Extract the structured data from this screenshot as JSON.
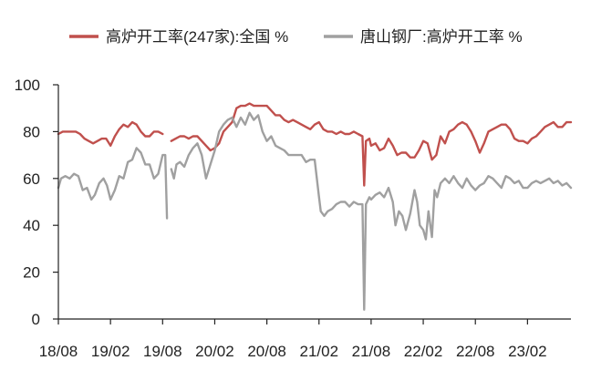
{
  "chart_data": {
    "type": "line",
    "title": "",
    "xlabel": "",
    "ylabel": "",
    "ylim": [
      0,
      100
    ],
    "yticks": [
      0,
      20,
      40,
      60,
      80,
      100
    ],
    "xlim": [
      0,
      59
    ],
    "x_tick_positions": [
      0,
      6,
      12,
      18,
      24,
      30,
      36,
      42,
      48,
      54
    ],
    "x_tick_labels": [
      "18/08",
      "19/02",
      "19/08",
      "20/02",
      "20/08",
      "21/02",
      "21/08",
      "22/02",
      "22/08",
      "23/02"
    ],
    "grid": false,
    "legend_position": "top",
    "series": [
      {
        "name": "高炉开工率(247家):全国 %",
        "color": "#c0504d",
        "points": [
          [
            0,
            79
          ],
          [
            0.5,
            80
          ],
          [
            1,
            80
          ],
          [
            1.5,
            80
          ],
          [
            2,
            80
          ],
          [
            2.5,
            79
          ],
          [
            3,
            77
          ],
          [
            3.5,
            76
          ],
          [
            4,
            75
          ],
          [
            4.5,
            76
          ],
          [
            5,
            77
          ],
          [
            5.5,
            77
          ],
          [
            6,
            74
          ],
          [
            6.5,
            78
          ],
          [
            7,
            81
          ],
          [
            7.5,
            83
          ],
          [
            8,
            82
          ],
          [
            8.5,
            84
          ],
          [
            9,
            83
          ],
          [
            9.5,
            80
          ],
          [
            10,
            78
          ],
          [
            10.5,
            78
          ],
          [
            11,
            80
          ],
          [
            11.5,
            80
          ],
          [
            12,
            79
          ],
          [
            12.5,
            null
          ],
          [
            13,
            76
          ],
          [
            13.5,
            77
          ],
          [
            14,
            78
          ],
          [
            14.5,
            78
          ],
          [
            15,
            77
          ],
          [
            15.5,
            78
          ],
          [
            16,
            78
          ],
          [
            16.5,
            76
          ],
          [
            17,
            74
          ],
          [
            17.5,
            72
          ],
          [
            18,
            73
          ],
          [
            18.5,
            75
          ],
          [
            19,
            80
          ],
          [
            19.5,
            82
          ],
          [
            20,
            84
          ],
          [
            20.5,
            90
          ],
          [
            21,
            91
          ],
          [
            21.5,
            91
          ],
          [
            22,
            92
          ],
          [
            22.5,
            91
          ],
          [
            23,
            91
          ],
          [
            23.5,
            91
          ],
          [
            24,
            91
          ],
          [
            24.5,
            89
          ],
          [
            25,
            87
          ],
          [
            25.5,
            87
          ],
          [
            26,
            85
          ],
          [
            26.5,
            84
          ],
          [
            27,
            85
          ],
          [
            27.5,
            84
          ],
          [
            28,
            83
          ],
          [
            28.5,
            82
          ],
          [
            29,
            81
          ],
          [
            29.5,
            83
          ],
          [
            30,
            84
          ],
          [
            30.5,
            81
          ],
          [
            31,
            80
          ],
          [
            31.5,
            80
          ],
          [
            32,
            79
          ],
          [
            32.5,
            80
          ],
          [
            33,
            79
          ],
          [
            33.5,
            79
          ],
          [
            34,
            80
          ],
          [
            34.5,
            79
          ],
          [
            35,
            78
          ],
          [
            35.2,
            57
          ],
          [
            35.4,
            76
          ],
          [
            35.8,
            77
          ],
          [
            36,
            74
          ],
          [
            36.5,
            75
          ],
          [
            37,
            72
          ],
          [
            37.5,
            73
          ],
          [
            38,
            77
          ],
          [
            38.5,
            74
          ],
          [
            39,
            70
          ],
          [
            39.5,
            71
          ],
          [
            40,
            71
          ],
          [
            40.5,
            69
          ],
          [
            41,
            69
          ],
          [
            41.5,
            72
          ],
          [
            42,
            76
          ],
          [
            42.5,
            75
          ],
          [
            43,
            68
          ],
          [
            43.5,
            70
          ],
          [
            44,
            78
          ],
          [
            44.5,
            75
          ],
          [
            45,
            80
          ],
          [
            45.5,
            81
          ],
          [
            46,
            83
          ],
          [
            46.5,
            84
          ],
          [
            47,
            83
          ],
          [
            47.5,
            80
          ],
          [
            48,
            76
          ],
          [
            48.5,
            71
          ],
          [
            49,
            75
          ],
          [
            49.5,
            80
          ],
          [
            50,
            81
          ],
          [
            50.5,
            82
          ],
          [
            51,
            83
          ],
          [
            51.5,
            83
          ],
          [
            52,
            81
          ],
          [
            52.5,
            77
          ],
          [
            53,
            76
          ],
          [
            53.5,
            76
          ],
          [
            54,
            75
          ],
          [
            54.5,
            77
          ],
          [
            55,
            78
          ],
          [
            55.5,
            80
          ],
          [
            56,
            82
          ],
          [
            56.5,
            83
          ],
          [
            57,
            84
          ],
          [
            57.5,
            82
          ],
          [
            58,
            82
          ],
          [
            58.5,
            84
          ],
          [
            59,
            84
          ]
        ]
      },
      {
        "name": "唐山钢厂:高炉开工率 %",
        "color": "#a0a0a0",
        "points": [
          [
            0,
            56
          ],
          [
            0.3,
            60
          ],
          [
            0.8,
            61
          ],
          [
            1.3,
            60
          ],
          [
            1.8,
            62
          ],
          [
            2.3,
            61
          ],
          [
            2.8,
            55
          ],
          [
            3.3,
            56
          ],
          [
            3.8,
            51
          ],
          [
            4.2,
            53
          ],
          [
            4.7,
            58
          ],
          [
            5.2,
            60
          ],
          [
            5.6,
            57
          ],
          [
            6,
            51
          ],
          [
            6.5,
            55
          ],
          [
            7,
            61
          ],
          [
            7.5,
            60
          ],
          [
            8,
            67
          ],
          [
            8.5,
            68
          ],
          [
            9,
            73
          ],
          [
            9.5,
            71
          ],
          [
            10,
            66
          ],
          [
            10.5,
            66
          ],
          [
            11,
            60
          ],
          [
            11.5,
            62
          ],
          [
            12,
            70
          ],
          [
            12.3,
            70
          ],
          [
            12.5,
            43
          ],
          [
            12.7,
            null
          ],
          [
            13,
            64
          ],
          [
            13.3,
            60
          ],
          [
            13.6,
            66
          ],
          [
            14,
            67
          ],
          [
            14.5,
            65
          ],
          [
            15,
            70
          ],
          [
            15.5,
            73
          ],
          [
            16,
            75
          ],
          [
            16.5,
            70
          ],
          [
            17,
            60
          ],
          [
            17.5,
            66
          ],
          [
            18,
            72
          ],
          [
            18.5,
            80
          ],
          [
            19,
            83
          ],
          [
            19.5,
            85
          ],
          [
            20,
            86
          ],
          [
            20.5,
            82
          ],
          [
            21,
            86
          ],
          [
            21.5,
            83
          ],
          [
            22,
            88
          ],
          [
            22.5,
            85
          ],
          [
            23,
            87
          ],
          [
            23.5,
            80
          ],
          [
            24,
            76
          ],
          [
            24.5,
            78
          ],
          [
            25,
            74
          ],
          [
            25.5,
            73
          ],
          [
            26,
            72
          ],
          [
            26.5,
            70
          ],
          [
            27,
            70
          ],
          [
            27.5,
            70
          ],
          [
            28,
            70
          ],
          [
            28.5,
            67
          ],
          [
            29,
            68
          ],
          [
            29.5,
            68
          ],
          [
            30,
            52
          ],
          [
            30.2,
            46
          ],
          [
            30.6,
            44
          ],
          [
            31,
            46
          ],
          [
            31.5,
            47
          ],
          [
            32,
            49
          ],
          [
            32.5,
            50
          ],
          [
            33,
            50
          ],
          [
            33.5,
            48
          ],
          [
            34,
            50
          ],
          [
            34.5,
            49
          ],
          [
            35,
            49
          ],
          [
            35.2,
            4
          ],
          [
            35.4,
            49
          ],
          [
            35.8,
            52
          ],
          [
            36,
            51
          ],
          [
            36.5,
            53
          ],
          [
            37,
            54
          ],
          [
            37.5,
            52
          ],
          [
            38,
            56
          ],
          [
            38.5,
            50
          ],
          [
            38.8,
            40
          ],
          [
            39.2,
            46
          ],
          [
            39.6,
            44
          ],
          [
            40,
            38
          ],
          [
            40.5,
            45
          ],
          [
            41,
            55
          ],
          [
            41.3,
            50
          ],
          [
            41.6,
            40
          ],
          [
            42,
            38
          ],
          [
            42.3,
            34
          ],
          [
            42.6,
            46
          ],
          [
            43,
            35
          ],
          [
            43.3,
            55
          ],
          [
            43.6,
            52
          ],
          [
            44,
            58
          ],
          [
            44.5,
            60
          ],
          [
            45,
            58
          ],
          [
            45.5,
            61
          ],
          [
            46,
            58
          ],
          [
            46.5,
            56
          ],
          [
            47,
            60
          ],
          [
            47.5,
            57
          ],
          [
            48,
            55
          ],
          [
            48.5,
            57
          ],
          [
            49,
            58
          ],
          [
            49.5,
            61
          ],
          [
            50,
            60
          ],
          [
            50.5,
            58
          ],
          [
            51,
            56
          ],
          [
            51.5,
            61
          ],
          [
            52,
            60
          ],
          [
            52.5,
            58
          ],
          [
            53,
            59
          ],
          [
            53.5,
            56
          ],
          [
            54,
            56
          ],
          [
            54.5,
            58
          ],
          [
            55,
            59
          ],
          [
            55.5,
            58
          ],
          [
            56,
            59
          ],
          [
            56.5,
            60
          ],
          [
            57,
            58
          ],
          [
            57.5,
            59
          ],
          [
            58,
            57
          ],
          [
            58.5,
            58
          ],
          [
            59,
            56
          ]
        ]
      }
    ]
  }
}
